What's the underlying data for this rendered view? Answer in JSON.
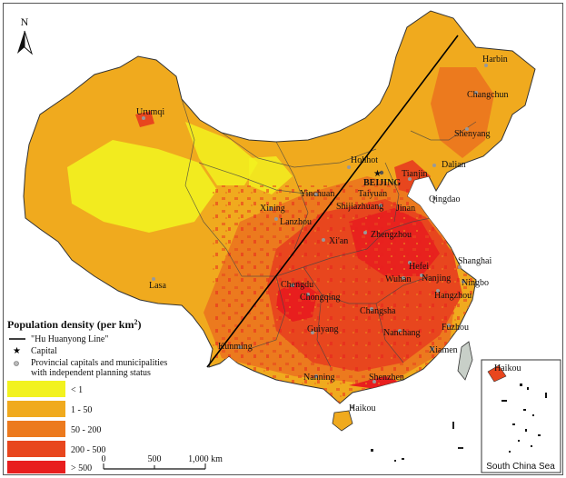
{
  "north_arrow": {
    "label": "N"
  },
  "legend": {
    "title": "Population density (per km",
    "title_sup": "2",
    "title_end": ")",
    "line_label": "\"Hu Huanyong Line\"",
    "capital_label": "Capital",
    "provincial_label_1": "Provincial capitals and municipalities",
    "provincial_label_2": "with independent planning status",
    "classes": [
      {
        "label": "< 1",
        "color": "#f2f21f"
      },
      {
        "label": "1 - 50",
        "color": "#f0aa1e"
      },
      {
        "label": "50 - 200",
        "color": "#ec7a1e"
      },
      {
        "label": "200 - 500",
        "color": "#e8461e"
      },
      {
        "label": "> 500",
        "color": "#e81e1e"
      }
    ]
  },
  "scale_bar": {
    "tick_0": "0",
    "tick_1": "500",
    "tick_2": "1,000 km"
  },
  "inset": {
    "title": "South China Sea",
    "city": "Haikou"
  },
  "cities": {
    "capital": "BEIJING",
    "harbin": "Harbin",
    "changchun": "Changchun",
    "shenyang": "Shenyang",
    "dalian": "Dalian",
    "tianjin": "Tianjin",
    "hohhot": "Hohhot",
    "yinchuan": "Yinchuan",
    "taiyuan": "Taiyuan",
    "shijiazhuang": "Shijiazhuang",
    "jinan": "Jinan",
    "qingdao": "Qingdao",
    "xining": "Xining",
    "lanzhou": "Lanzhou",
    "zhengzhou": "Zhengzhou",
    "xian": "Xi'an",
    "urumqi": "Urumqi",
    "lasa": "Lasa",
    "hefei": "Hefei",
    "nanjing": "Nanjing",
    "shanghai": "Shanghai",
    "ningbo": "Ningbo",
    "hangzhou": "Hangzhou",
    "wuhan": "Wuhan",
    "chengdu": "Chengdu",
    "chongqing": "Chongqing",
    "changsha": "Changsha",
    "guiyang": "Guiyang",
    "kunming": "Kunming",
    "nanchang": "Nanchang",
    "fuzhou": "Fuzhou",
    "xiamen": "Xiamen",
    "nanning": "Nanning",
    "shenzhen": "Shenzhen",
    "haikou": "Haikou"
  }
}
